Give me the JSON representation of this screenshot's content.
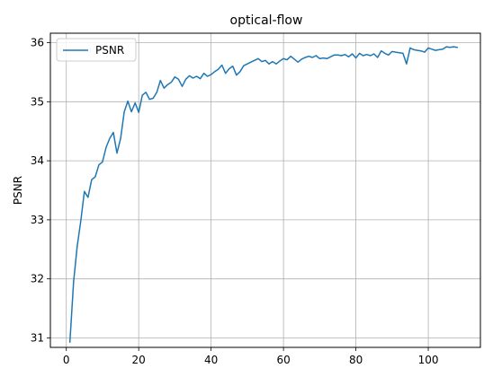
{
  "chart_data": {
    "type": "line",
    "title": "optical-flow",
    "xlabel": "",
    "ylabel": "PSNR",
    "xlim": [
      -4.4,
      114.4
    ],
    "ylim": [
      30.84,
      36.16
    ],
    "xticks": [
      0,
      20,
      40,
      60,
      80,
      100
    ],
    "yticks": [
      31,
      32,
      33,
      34,
      35,
      36
    ],
    "grid": true,
    "legend": {
      "position": "upper-left"
    },
    "series": [
      {
        "name": "PSNR",
        "color": "#1f77b4",
        "x": [
          1,
          2,
          3,
          4,
          5,
          6,
          7,
          8,
          9,
          10,
          11,
          12,
          13,
          14,
          15,
          16,
          17,
          18,
          19,
          20,
          21,
          22,
          23,
          24,
          25,
          26,
          27,
          28,
          29,
          30,
          31,
          32,
          33,
          34,
          35,
          36,
          37,
          38,
          39,
          40,
          41,
          42,
          43,
          44,
          45,
          46,
          47,
          48,
          49,
          50,
          51,
          52,
          53,
          54,
          55,
          56,
          57,
          58,
          59,
          60,
          61,
          62,
          63,
          64,
          65,
          66,
          67,
          68,
          69,
          70,
          71,
          72,
          73,
          74,
          75,
          76,
          77,
          78,
          79,
          80,
          81,
          82,
          83,
          84,
          85,
          86,
          87,
          88,
          89,
          90,
          91,
          92,
          93,
          94,
          95,
          96,
          97,
          98,
          99,
          100,
          101,
          102,
          103,
          104,
          105,
          106,
          107,
          108
        ],
        "values": [
          30.93,
          31.95,
          32.55,
          32.98,
          33.48,
          33.38,
          33.68,
          33.73,
          33.93,
          33.98,
          34.23,
          34.38,
          34.48,
          34.13,
          34.38,
          34.83,
          35.01,
          34.83,
          34.98,
          34.82,
          35.11,
          35.16,
          35.04,
          35.06,
          35.16,
          35.36,
          35.23,
          35.29,
          35.33,
          35.42,
          35.38,
          35.26,
          35.38,
          35.44,
          35.4,
          35.43,
          35.39,
          35.48,
          35.43,
          35.46,
          35.51,
          35.55,
          35.62,
          35.48,
          35.56,
          35.6,
          35.45,
          35.51,
          35.61,
          35.64,
          35.67,
          35.7,
          35.73,
          35.68,
          35.7,
          35.64,
          35.68,
          35.64,
          35.69,
          35.73,
          35.71,
          35.77,
          35.72,
          35.67,
          35.72,
          35.75,
          35.77,
          35.75,
          35.78,
          35.73,
          35.74,
          35.73,
          35.76,
          35.79,
          35.79,
          35.78,
          35.8,
          35.76,
          35.81,
          35.74,
          35.82,
          35.78,
          35.8,
          35.78,
          35.81,
          35.75,
          35.86,
          35.82,
          35.79,
          35.85,
          35.84,
          35.83,
          35.82,
          35.64,
          35.91,
          35.88,
          35.87,
          35.86,
          35.84,
          35.91,
          35.89,
          35.87,
          35.88,
          35.89,
          35.93,
          35.92,
          35.93,
          35.92
        ]
      }
    ]
  }
}
